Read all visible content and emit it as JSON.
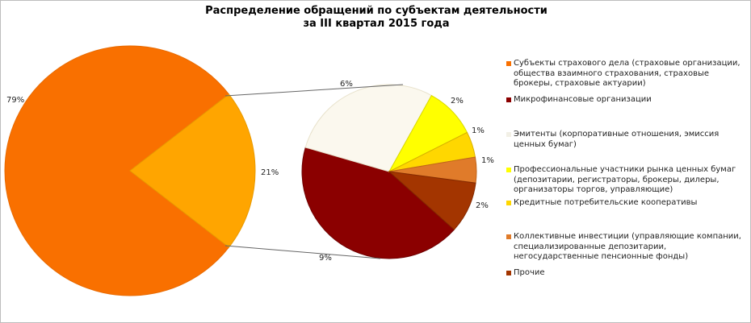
{
  "chart_data": {
    "type": "pie",
    "subtype": "pie-of-pie",
    "title": "Распределение обращений по субъектам деятельности\nза III квартал 2015 года",
    "title_lines": [
      "Распределение обращений по субъектам деятельности",
      "за III квартал 2015 года"
    ],
    "legend_position": "right",
    "main_pie": {
      "slices": [
        {
          "label": "Субъекты страхового дела (страховые организации, общества взаимного страхования, страховые брокеры, страховые актуарии)",
          "value": 79,
          "display": "79%",
          "color": "#F97000"
        },
        {
          "label": "",
          "value": 21,
          "display": "21%",
          "color": "#FFA500"
        }
      ]
    },
    "secondary_pie": {
      "slices": [
        {
          "label": "Микрофинансовые организации",
          "value": 9,
          "display": "9%",
          "color": "#8B0000"
        },
        {
          "label": "Эмитенты (корпоративные отношения, эмиссия ценных бумаг)",
          "value": 6,
          "display": "6%",
          "color": "#FBF8EE"
        },
        {
          "label": "Профессиональные участники рынка ценных бумаг (депозитарии, регистраторы, брокеры, дилеры, организаторы торгов, управляющие)",
          "value": 2,
          "display": "2%",
          "color": "#FFFF00"
        },
        {
          "label": "Кредитные потребительские кооперативы",
          "value": 1,
          "display": "1%",
          "color": "#FFD700"
        },
        {
          "label": "Коллективные инвестиции (управляющие компании, специализированные депозитарии, негосударственные пенсионные фонды)",
          "value": 1,
          "display": "1%",
          "color": "#E07B2A"
        },
        {
          "label": "Прочие",
          "value": 2,
          "display": "2%",
          "color": "#A33500"
        }
      ]
    },
    "legend": [
      {
        "label": "Субъекты страхового дела (страховые организации, общества взаимного страхования, страховые брокеры, страховые актуарии)",
        "color": "#F97000"
      },
      {
        "label": "Микрофинансовые организации",
        "color": "#8B0000"
      },
      {
        "label": "Эмитенты (корпоративные отношения, эмиссия ценных бумаг)",
        "color": "#F2F0E6"
      },
      {
        "label": "Профессиональные участники рынка ценных бумаг (депозитарии, регистраторы, брокеры, дилеры, организаторы торгов, управляющие)",
        "color": "#FFFF00"
      },
      {
        "label": "Кредитные потребительские кооперативы",
        "color": "#FFD700"
      },
      {
        "label": "Коллективные инвестиции (управляющие компании, специализированные депозитарии, негосударственные пенсионные фонды)",
        "color": "#E07B2A"
      },
      {
        "label": "Прочие",
        "color": "#A33500"
      }
    ]
  }
}
